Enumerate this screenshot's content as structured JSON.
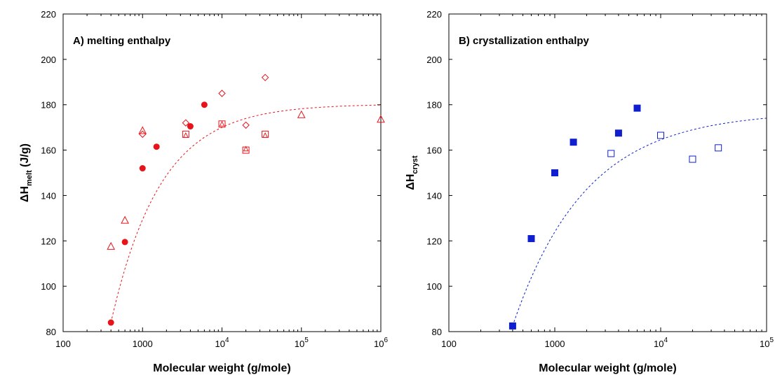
{
  "chart_data": [
    {
      "type": "scatter",
      "title": "A) melting enthalpy",
      "xlabel": "Molecular weight (g/mole)",
      "ylabel": {
        "main": "ΔH",
        "sub": "melt",
        "unit": " (J/g)"
      },
      "xscale": "log",
      "xlim": [
        100,
        1000000
      ],
      "ylim": [
        80,
        220
      ],
      "xticks": [
        {
          "value": 100,
          "base": "100",
          "exp": ""
        },
        {
          "value": 1000,
          "base": "1000",
          "exp": ""
        },
        {
          "value": 10000,
          "base": "10",
          "exp": "4"
        },
        {
          "value": 100000,
          "base": "10",
          "exp": "5"
        },
        {
          "value": 1000000,
          "base": "10",
          "exp": "6"
        }
      ],
      "yticks": [
        "80",
        "100",
        "120",
        "140",
        "160",
        "180",
        "200",
        "220"
      ],
      "color": "#e8141b",
      "series": [
        {
          "marker": "filled-circle",
          "x": [
            400,
            600,
            1000,
            1500,
            4000,
            6000
          ],
          "y": [
            84,
            119.5,
            152,
            161.5,
            170.5,
            180
          ]
        },
        {
          "marker": "open-triangle",
          "x": [
            400,
            600,
            1000,
            100000,
            1000000
          ],
          "y": [
            117.5,
            129,
            168.5,
            175.5,
            173.5
          ]
        },
        {
          "marker": "open-diamond",
          "x": [
            1000,
            3500,
            10000,
            20000,
            35000
          ],
          "y": [
            167,
            172,
            185,
            171,
            192
          ]
        },
        {
          "marker": "open-square",
          "x": [
            3500,
            10000,
            20000,
            35000
          ],
          "y": [
            167,
            171.5,
            160,
            167
          ]
        },
        {
          "marker": "open-triangle-small",
          "x": [
            3500,
            10000,
            20000,
            35000
          ],
          "y": [
            166.5,
            171.5,
            160.5,
            166.5
          ]
        }
      ],
      "fit": {
        "style": "dashed",
        "plateau": 180.3,
        "x0": 400,
        "y0": 84,
        "k": 1.6
      }
    },
    {
      "type": "scatter",
      "title": "B) crystallization enthalpy",
      "xlabel": "Molecular weight (g/mole)",
      "ylabel": {
        "main": "ΔH",
        "sub": "cryst",
        "unit": ""
      },
      "xscale": "log",
      "xlim": [
        100,
        100000
      ],
      "ylim": [
        80,
        220
      ],
      "xticks": [
        {
          "value": 100,
          "base": "100",
          "exp": ""
        },
        {
          "value": 1000,
          "base": "1000",
          "exp": ""
        },
        {
          "value": 10000,
          "base": "10",
          "exp": "4"
        },
        {
          "value": 100000,
          "base": "10",
          "exp": "5"
        }
      ],
      "yticks": [
        "80",
        "100",
        "120",
        "140",
        "160",
        "180",
        "200",
        "220"
      ],
      "color": "#0f1fcf",
      "series": [
        {
          "marker": "filled-square",
          "x": [
            400,
            600,
            1000,
            1500,
            4000,
            6000
          ],
          "y": [
            82.5,
            121,
            150,
            163.5,
            167.5,
            178.5
          ]
        },
        {
          "marker": "open-square",
          "x": [
            3400,
            10000,
            20000,
            35000
          ],
          "y": [
            158.5,
            166.5,
            156,
            161
          ]
        }
      ],
      "fit": {
        "style": "dashed",
        "plateau": 177,
        "x0": 400,
        "y0": 82.5,
        "k": 1.45
      }
    }
  ]
}
